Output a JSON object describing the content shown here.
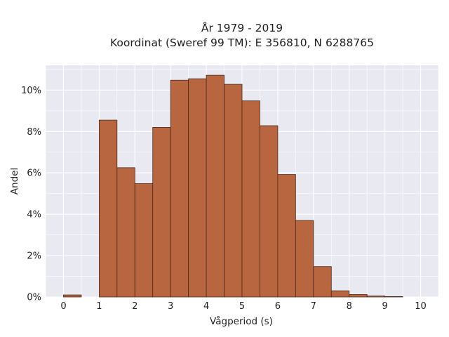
{
  "chart_data": {
    "type": "bar",
    "title_line1": "År 1979 - 2019",
    "title_line2": "Koordinat (Sweref 99 TM): E 356810, N 6288765",
    "xlabel": "Vågperiod (s)",
    "ylabel": "Andel",
    "xlim": [
      -0.5,
      10.5
    ],
    "ylim": [
      0,
      11.2
    ],
    "x_ticks": [
      {
        "value": 0,
        "label": "0"
      },
      {
        "value": 1,
        "label": "1"
      },
      {
        "value": 2,
        "label": "2"
      },
      {
        "value": 3,
        "label": "3"
      },
      {
        "value": 4,
        "label": "4"
      },
      {
        "value": 5,
        "label": "5"
      },
      {
        "value": 6,
        "label": "6"
      },
      {
        "value": 7,
        "label": "7"
      },
      {
        "value": 8,
        "label": "8"
      },
      {
        "value": 9,
        "label": "9"
      },
      {
        "value": 10,
        "label": "10"
      }
    ],
    "y_ticks": [
      {
        "value": 0,
        "label": "0%"
      },
      {
        "value": 2,
        "label": "2%"
      },
      {
        "value": 4,
        "label": "4%"
      },
      {
        "value": 6,
        "label": "6%"
      },
      {
        "value": 8,
        "label": "8%"
      },
      {
        "value": 10,
        "label": "10%"
      }
    ],
    "bin_width": 0.5,
    "bins": [
      {
        "start": 0.0,
        "value": 0.1
      },
      {
        "start": 1.0,
        "value": 8.55
      },
      {
        "start": 1.5,
        "value": 6.25
      },
      {
        "start": 2.0,
        "value": 5.48
      },
      {
        "start": 2.5,
        "value": 8.2
      },
      {
        "start": 3.0,
        "value": 10.48
      },
      {
        "start": 3.5,
        "value": 10.55
      },
      {
        "start": 4.0,
        "value": 10.72
      },
      {
        "start": 4.5,
        "value": 10.28
      },
      {
        "start": 5.0,
        "value": 9.48
      },
      {
        "start": 5.5,
        "value": 8.28
      },
      {
        "start": 6.0,
        "value": 5.92
      },
      {
        "start": 6.5,
        "value": 3.7
      },
      {
        "start": 7.0,
        "value": 1.47
      },
      {
        "start": 7.5,
        "value": 0.3
      },
      {
        "start": 8.0,
        "value": 0.12
      },
      {
        "start": 8.5,
        "value": 0.05
      },
      {
        "start": 9.0,
        "value": 0.02
      }
    ],
    "grid": true,
    "colors": {
      "bar_fill": "#b8663f",
      "bar_stroke": "#4a2a1a",
      "plot_bg": "#e9e9f1",
      "grid": "#ffffff"
    }
  }
}
